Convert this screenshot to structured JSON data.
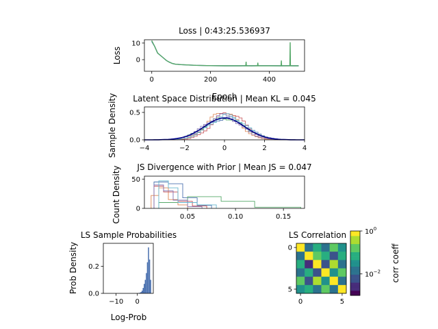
{
  "chart_data": [
    {
      "id": "loss",
      "type": "line",
      "title": "Loss | 0:43:25.536937",
      "xlabel": "Epoch",
      "ylabel": "Loss",
      "xlim": [
        -25,
        520
      ],
      "ylim": [
        -7,
        12
      ],
      "xticks": [
        "0",
        "200",
        "400"
      ],
      "yticks": [
        "0",
        "10"
      ],
      "series": [
        {
          "color": "#4c72b0",
          "x": [
            0,
            10,
            20,
            30,
            40,
            50,
            60,
            70,
            80,
            100,
            150,
            200,
            250,
            300,
            320,
            340,
            360,
            400,
            440,
            470,
            480,
            500
          ],
          "y": [
            11,
            8,
            4,
            2.5,
            1,
            -0.5,
            -1.5,
            -2.3,
            -2.7,
            -3.0,
            -3.4,
            -3.6,
            -3.7,
            -3.7,
            -3.6,
            -3.7,
            -3.6,
            -3.6,
            -3.7,
            -3.6,
            -3.7,
            -3.7
          ]
        },
        {
          "color": "#55a868",
          "x": [
            0,
            10,
            20,
            30,
            40,
            50,
            60,
            70,
            80,
            100,
            150,
            200,
            250,
            300,
            320,
            321,
            322,
            340,
            360,
            361,
            362,
            400,
            440,
            441,
            442,
            460,
            470,
            471,
            472,
            480,
            500
          ],
          "y": [
            11.5,
            8,
            4,
            2.5,
            1,
            -0.5,
            -1.5,
            -2.3,
            -2.7,
            -3.0,
            -3.4,
            -3.6,
            -3.7,
            -3.7,
            -3.7,
            -1.2,
            -3.7,
            -3.7,
            -3.7,
            -1.8,
            -3.7,
            -3.7,
            -3.7,
            -0.5,
            -3.7,
            -3.7,
            -3.7,
            10.5,
            -3.7,
            -3.7,
            -3.7
          ]
        }
      ]
    },
    {
      "id": "latent",
      "type": "line",
      "title": "Latent Space Distribution | Mean KL = 0.045",
      "xlabel": "",
      "ylabel": "Sample Density",
      "xlim": [
        -4,
        4
      ],
      "ylim": [
        0,
        0.6
      ],
      "xticks": [
        "−4",
        "−2",
        "0",
        "2",
        "4"
      ],
      "yticks": [
        "0.0",
        "0.5"
      ],
      "prior": {
        "color": "#00008b",
        "mean": 0,
        "std": 1
      },
      "series": [
        {
          "color": "#4c72b0",
          "mean": 0.1,
          "std": 1.0
        },
        {
          "color": "#dd8452",
          "mean": -0.05,
          "std": 0.78
        },
        {
          "color": "#55a868",
          "mean": 0.0,
          "std": 1.0
        },
        {
          "color": "#c44e52",
          "mean": 0.2,
          "std": 0.8
        },
        {
          "color": "#8172b3",
          "mean": -0.1,
          "std": 0.9
        },
        {
          "color": "#64b5cd",
          "mean": 0.15,
          "std": 0.9
        }
      ]
    },
    {
      "id": "js",
      "type": "bar",
      "title": "JS Divergence with Prior | Mean JS = 0.047",
      "xlabel": "",
      "ylabel": "Count Density",
      "xlim": [
        0.005,
        0.172
      ],
      "ylim": [
        0,
        55
      ],
      "xticks": [
        "0.05",
        "0.10",
        "0.15"
      ],
      "yticks": [
        "0",
        "50"
      ],
      "series": [
        {
          "color": "#4c72b0",
          "edges": [
            0.015,
            0.03,
            0.045,
            0.06,
            0.075
          ],
          "heights": [
            45,
            42,
            18,
            5
          ]
        },
        {
          "color": "#dd8452",
          "edges": [
            0.012,
            0.02,
            0.03,
            0.04,
            0.05
          ],
          "heights": [
            22,
            35,
            15,
            6
          ]
        },
        {
          "color": "#55a868",
          "edges": [
            0.02,
            0.05,
            0.085,
            0.12,
            0.168
          ],
          "heights": [
            10,
            20,
            12,
            2
          ]
        },
        {
          "color": "#c44e52",
          "edges": [
            0.015,
            0.025,
            0.04,
            0.055,
            0.07
          ],
          "heights": [
            38,
            28,
            12,
            4
          ]
        },
        {
          "color": "#8172b3",
          "edges": [
            0.015,
            0.025,
            0.035,
            0.05,
            0.065
          ],
          "heights": [
            40,
            30,
            14,
            3
          ]
        },
        {
          "color": "#64b5cd",
          "edges": [
            0.02,
            0.03,
            0.04,
            0.06,
            0.08
          ],
          "heights": [
            47,
            35,
            10,
            6
          ]
        }
      ]
    },
    {
      "id": "probs",
      "type": "bar",
      "title": "LS Sample Probabilities",
      "xlabel": "Log-Prob",
      "ylabel": "Prob Density",
      "xlim": [
        -16,
        7.5
      ],
      "ylim": [
        0,
        0.37
      ],
      "xticks": [
        "−10",
        "0"
      ],
      "yticks": [
        "0.0",
        "0.2"
      ],
      "color": "#4c72b0",
      "edges": [
        0.5,
        1,
        1.5,
        2,
        2.5,
        3,
        3.5,
        4,
        4.5,
        5,
        5.5,
        6
      ],
      "heights": [
        0.003,
        0.005,
        0.01,
        0.02,
        0.04,
        0.07,
        0.1,
        0.15,
        0.23,
        0.34,
        0.25,
        0.1
      ]
    },
    {
      "id": "corr",
      "type": "heatmap",
      "title": "LS Correlation",
      "xlabel": "",
      "ylabel": "",
      "xticks": [
        "0",
        "5"
      ],
      "yticks": [
        "0",
        "5"
      ],
      "colorbar_label": "corr coeff",
      "colorbar_ticks": [
        "10^0",
        "10^−2"
      ],
      "scale": "log",
      "matrix": [
        [
          1.0,
          0.01,
          0.08,
          0.01,
          0.15,
          0.03
        ],
        [
          0.01,
          1.0,
          0.2,
          0.05,
          0.008,
          0.1
        ],
        [
          0.08,
          0.002,
          1.0,
          0.004,
          0.3,
          0.01
        ],
        [
          0.01,
          0.05,
          0.004,
          1.0,
          0.03,
          0.2
        ],
        [
          0.15,
          0.008,
          0.3,
          0.03,
          1.0,
          0.01
        ],
        [
          0.03,
          0.1,
          0.01,
          0.2,
          0.01,
          1.0
        ]
      ]
    }
  ]
}
